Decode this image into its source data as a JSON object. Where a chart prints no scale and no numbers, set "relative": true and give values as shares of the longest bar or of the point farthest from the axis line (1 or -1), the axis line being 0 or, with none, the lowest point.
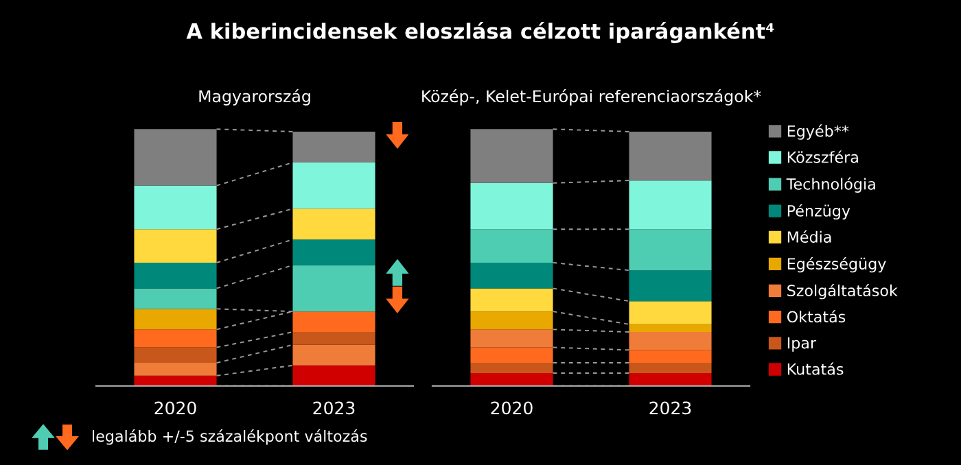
{
  "chart_data": [
    {
      "type": "bar",
      "title": "A kiberincidensek eloszlása célzott iparáganként⁴",
      "subtitle": "Magyarország",
      "relative": true,
      "stacked": true,
      "categories": [
        "2020",
        "2023"
      ],
      "annotations": [
        "legalább +/-5 százalékpont változás"
      ],
      "series": [
        {
          "color": "#d00000",
          "values": [
            0.04,
            0.08
          ]
        },
        {
          "color": "#f07c3a",
          "values": [
            0.05,
            0.08
          ]
        },
        {
          "color": "#c8571c",
          "values": [
            0.06,
            0.05
          ]
        },
        {
          "color": "#ff6a1f",
          "values": [
            0.07,
            0.08
          ]
        },
        {
          "color": "#e8a800",
          "values": [
            0.08,
            0
          ]
        },
        {
          "color": "#4fcdb3",
          "values": [
            0.08,
            0.18
          ]
        },
        {
          "color": "#00897b",
          "values": [
            0.1,
            0.1
          ]
        },
        {
          "color": "#ffd93d",
          "values": [
            0.13,
            0.12
          ]
        },
        {
          "color": "#7ff5dc",
          "values": [
            0.17,
            0.18
          ]
        },
        {
          "color": "#7f7f7f",
          "values": [
            0.22,
            0.12
          ]
        }
      ]
    },
    {
      "type": "bar",
      "subtitle": "Közép-, Kelet-Európai referenciaországok*",
      "relative": true,
      "stacked": true,
      "legend": "right",
      "categories": [
        "2020",
        "2023"
      ],
      "series": [
        {
          "name": "Kutatás",
          "color": "#d00000",
          "values": [
            0.05,
            0.05
          ]
        },
        {
          "name": "Ipar",
          "color": "#c8571c",
          "values": [
            0.04,
            0.04
          ]
        },
        {
          "name": "Oktatás",
          "color": "#ff6a1f",
          "values": [
            0.06,
            0.05
          ]
        },
        {
          "name": "Szolgáltatások",
          "color": "#f07c3a",
          "values": [
            0.07,
            0.07
          ]
        },
        {
          "name": "Egészségügy",
          "color": "#e8a800",
          "values": [
            0.07,
            0.03
          ]
        },
        {
          "name": "Média",
          "color": "#ffd93d",
          "values": [
            0.09,
            0.09
          ]
        },
        {
          "name": "Pénzügy",
          "color": "#00897b",
          "values": [
            0.1,
            0.12
          ]
        },
        {
          "name": "Technológia",
          "color": "#4fcdb3",
          "values": [
            0.13,
            0.16
          ]
        },
        {
          "name": "Közszféra",
          "color": "#7ff5dc",
          "values": [
            0.18,
            0.19
          ]
        },
        {
          "name": "Egyéb**",
          "color": "#7f7f7f",
          "values": [
            0.21,
            0.19
          ]
        }
      ]
    }
  ]
}
